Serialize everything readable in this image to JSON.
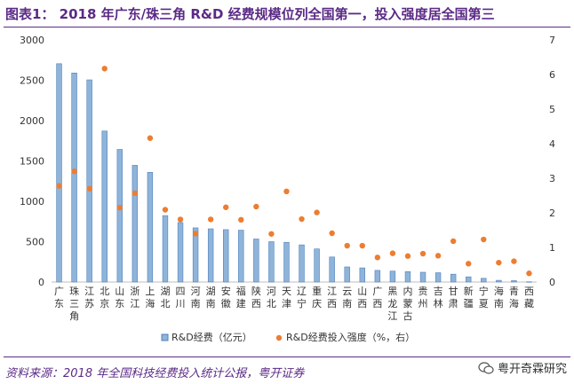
{
  "title": "图表1： 2018 年广东/珠三角 R&D 经费规模位列全国第一，投入强度居全国第三",
  "source": "资料来源：2018 年全国科技经费投入统计公报，粤开证券",
  "watermark": "粤开奇霖研究",
  "colors": {
    "bar": "#8fb4d9",
    "bar_edge": "#4f81bd",
    "dot": "#ed7d31",
    "accent": "#5b2a86",
    "grid": "#d9d9d9"
  },
  "chart_data": {
    "type": "bar",
    "categories": [
      "广东",
      "珠三角",
      "江苏",
      "北京",
      "山东",
      "浙江",
      "上海",
      "湖北",
      "四川",
      "河南",
      "湖南",
      "安徽",
      "福建",
      "陕西",
      "河北",
      "天津",
      "辽宁",
      "重庆",
      "江西",
      "云南",
      "山西",
      "广西",
      "黑龙江",
      "内蒙古",
      "贵州",
      "吉林",
      "甘肃",
      "新疆",
      "宁夏",
      "海南",
      "青海",
      "西藏"
    ],
    "category_lines": [
      [
        "广",
        "东"
      ],
      [
        "珠",
        "三",
        "角"
      ],
      [
        "江",
        "苏"
      ],
      [
        "北",
        "京"
      ],
      [
        "山",
        "东"
      ],
      [
        "浙",
        "江"
      ],
      [
        "上",
        "海"
      ],
      [
        "湖",
        "北"
      ],
      [
        "四",
        "川"
      ],
      [
        "河",
        "南"
      ],
      [
        "湖",
        "南"
      ],
      [
        "安",
        "徽"
      ],
      [
        "福",
        "建"
      ],
      [
        "陕",
        "西"
      ],
      [
        "河",
        "北"
      ],
      [
        "天",
        "津"
      ],
      [
        "辽",
        "宁"
      ],
      [
        "重",
        "庆"
      ],
      [
        "江",
        "西"
      ],
      [
        "云",
        "南"
      ],
      [
        "山",
        "西"
      ],
      [
        "广",
        "西"
      ],
      [
        "黑",
        "龙",
        "江"
      ],
      [
        "内",
        "蒙",
        "古"
      ],
      [
        "贵",
        "州"
      ],
      [
        "吉",
        "林"
      ],
      [
        "甘",
        "肃"
      ],
      [
        "新",
        "疆"
      ],
      [
        "宁",
        "夏"
      ],
      [
        "海",
        "南"
      ],
      [
        "青",
        "海"
      ],
      [
        "西",
        "藏"
      ]
    ],
    "series": [
      {
        "name": "R&D经费（亿元）",
        "kind": "bar",
        "axis": "left",
        "values": [
          2705,
          2590,
          2505,
          1871,
          1643,
          1446,
          1359,
          823,
          737,
          671,
          659,
          649,
          642,
          533,
          500,
          492,
          460,
          410,
          310,
          187,
          175,
          144,
          135,
          129,
          121,
          115,
          97,
          64,
          46,
          21,
          17,
          3
        ]
      },
      {
        "name": "R&D经费投入强度（%，右）",
        "kind": "scatter",
        "axis": "right",
        "values": [
          2.78,
          3.2,
          2.7,
          6.17,
          2.15,
          2.57,
          4.16,
          2.09,
          1.81,
          1.4,
          1.81,
          2.16,
          1.8,
          2.18,
          1.39,
          2.62,
          1.82,
          2.01,
          1.41,
          1.05,
          1.05,
          0.71,
          0.83,
          0.75,
          0.82,
          0.76,
          1.18,
          0.53,
          1.23,
          0.56,
          0.6,
          0.25
        ]
      }
    ],
    "y_left": {
      "min": 0,
      "max": 3000,
      "ticks": [
        "0",
        "500",
        "1000",
        "1500",
        "2000",
        "2500",
        "3000"
      ]
    },
    "y_right": {
      "min": 0,
      "max": 7,
      "ticks": [
        "0",
        "1",
        "2",
        "3",
        "4",
        "5",
        "6",
        "7"
      ]
    },
    "grid": false,
    "legend": "bottom-center"
  }
}
